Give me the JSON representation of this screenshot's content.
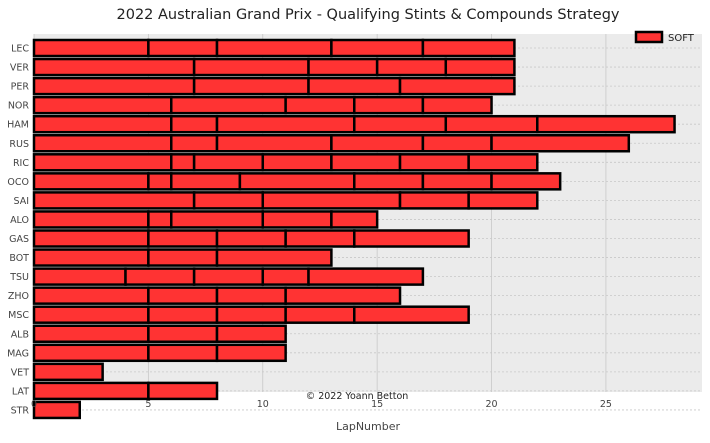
{
  "chart_data": {
    "type": "bar",
    "orientation": "horizontal-stacked",
    "title": "2022 Australian Grand Prix - Qualifying Stints & Compounds Strategy",
    "xlabel": "LapNumber",
    "ylabel": "",
    "xlim": [
      0,
      29.2
    ],
    "xticks": [
      0,
      5,
      10,
      15,
      20,
      25
    ],
    "grid": true,
    "legend": {
      "position": "top-right",
      "entries": [
        {
          "label": "SOFT",
          "color": "#ff3333"
        }
      ]
    },
    "annotation": "© 2022 Yoann Betton",
    "colors": {
      "SOFT": "#ff3333",
      "edge": "#000000",
      "background": "#ebebeb",
      "grid": "#c8c8c8"
    },
    "drivers": [
      {
        "driver": "LEC",
        "stints": [
          {
            "compound": "SOFT",
            "laps": 5
          },
          {
            "compound": "SOFT",
            "laps": 3
          },
          {
            "compound": "SOFT",
            "laps": 5
          },
          {
            "compound": "SOFT",
            "laps": 4
          },
          {
            "compound": "SOFT",
            "laps": 4
          }
        ]
      },
      {
        "driver": "VER",
        "stints": [
          {
            "compound": "SOFT",
            "laps": 7
          },
          {
            "compound": "SOFT",
            "laps": 5
          },
          {
            "compound": "SOFT",
            "laps": 3
          },
          {
            "compound": "SOFT",
            "laps": 3
          },
          {
            "compound": "SOFT",
            "laps": 3
          }
        ]
      },
      {
        "driver": "PER",
        "stints": [
          {
            "compound": "SOFT",
            "laps": 7
          },
          {
            "compound": "SOFT",
            "laps": 5
          },
          {
            "compound": "SOFT",
            "laps": 4
          },
          {
            "compound": "SOFT",
            "laps": 5
          }
        ]
      },
      {
        "driver": "NOR",
        "stints": [
          {
            "compound": "SOFT",
            "laps": 6
          },
          {
            "compound": "SOFT",
            "laps": 5
          },
          {
            "compound": "SOFT",
            "laps": 3
          },
          {
            "compound": "SOFT",
            "laps": 3
          },
          {
            "compound": "SOFT",
            "laps": 3
          }
        ]
      },
      {
        "driver": "HAM",
        "stints": [
          {
            "compound": "SOFT",
            "laps": 6
          },
          {
            "compound": "SOFT",
            "laps": 2
          },
          {
            "compound": "SOFT",
            "laps": 6
          },
          {
            "compound": "SOFT",
            "laps": 4
          },
          {
            "compound": "SOFT",
            "laps": 4
          },
          {
            "compound": "SOFT",
            "laps": 6
          }
        ]
      },
      {
        "driver": "RUS",
        "stints": [
          {
            "compound": "SOFT",
            "laps": 6
          },
          {
            "compound": "SOFT",
            "laps": 2
          },
          {
            "compound": "SOFT",
            "laps": 5
          },
          {
            "compound": "SOFT",
            "laps": 4
          },
          {
            "compound": "SOFT",
            "laps": 3
          },
          {
            "compound": "SOFT",
            "laps": 6
          }
        ]
      },
      {
        "driver": "RIC",
        "stints": [
          {
            "compound": "SOFT",
            "laps": 6
          },
          {
            "compound": "SOFT",
            "laps": 1
          },
          {
            "compound": "SOFT",
            "laps": 3
          },
          {
            "compound": "SOFT",
            "laps": 3
          },
          {
            "compound": "SOFT",
            "laps": 3
          },
          {
            "compound": "SOFT",
            "laps": 3
          },
          {
            "compound": "SOFT",
            "laps": 3
          }
        ]
      },
      {
        "driver": "OCO",
        "stints": [
          {
            "compound": "SOFT",
            "laps": 5
          },
          {
            "compound": "SOFT",
            "laps": 1
          },
          {
            "compound": "SOFT",
            "laps": 3
          },
          {
            "compound": "SOFT",
            "laps": 5
          },
          {
            "compound": "SOFT",
            "laps": 3
          },
          {
            "compound": "SOFT",
            "laps": 3
          },
          {
            "compound": "SOFT",
            "laps": 3
          }
        ]
      },
      {
        "driver": "SAI",
        "stints": [
          {
            "compound": "SOFT",
            "laps": 7
          },
          {
            "compound": "SOFT",
            "laps": 3
          },
          {
            "compound": "SOFT",
            "laps": 6
          },
          {
            "compound": "SOFT",
            "laps": 3
          },
          {
            "compound": "SOFT",
            "laps": 3
          }
        ]
      },
      {
        "driver": "ALO",
        "stints": [
          {
            "compound": "SOFT",
            "laps": 5
          },
          {
            "compound": "SOFT",
            "laps": 1
          },
          {
            "compound": "SOFT",
            "laps": 4
          },
          {
            "compound": "SOFT",
            "laps": 3
          },
          {
            "compound": "SOFT",
            "laps": 2
          }
        ]
      },
      {
        "driver": "GAS",
        "stints": [
          {
            "compound": "SOFT",
            "laps": 5
          },
          {
            "compound": "SOFT",
            "laps": 3
          },
          {
            "compound": "SOFT",
            "laps": 3
          },
          {
            "compound": "SOFT",
            "laps": 3
          },
          {
            "compound": "SOFT",
            "laps": 5
          }
        ]
      },
      {
        "driver": "BOT",
        "stints": [
          {
            "compound": "SOFT",
            "laps": 5
          },
          {
            "compound": "SOFT",
            "laps": 3
          },
          {
            "compound": "SOFT",
            "laps": 5
          }
        ]
      },
      {
        "driver": "TSU",
        "stints": [
          {
            "compound": "SOFT",
            "laps": 4
          },
          {
            "compound": "SOFT",
            "laps": 3
          },
          {
            "compound": "SOFT",
            "laps": 3
          },
          {
            "compound": "SOFT",
            "laps": 2
          },
          {
            "compound": "SOFT",
            "laps": 5
          }
        ]
      },
      {
        "driver": "ZHO",
        "stints": [
          {
            "compound": "SOFT",
            "laps": 5
          },
          {
            "compound": "SOFT",
            "laps": 3
          },
          {
            "compound": "SOFT",
            "laps": 3
          },
          {
            "compound": "SOFT",
            "laps": 5
          }
        ]
      },
      {
        "driver": "MSC",
        "stints": [
          {
            "compound": "SOFT",
            "laps": 5
          },
          {
            "compound": "SOFT",
            "laps": 3
          },
          {
            "compound": "SOFT",
            "laps": 3
          },
          {
            "compound": "SOFT",
            "laps": 3
          },
          {
            "compound": "SOFT",
            "laps": 5
          }
        ]
      },
      {
        "driver": "ALB",
        "stints": [
          {
            "compound": "SOFT",
            "laps": 5
          },
          {
            "compound": "SOFT",
            "laps": 3
          },
          {
            "compound": "SOFT",
            "laps": 3
          }
        ]
      },
      {
        "driver": "MAG",
        "stints": [
          {
            "compound": "SOFT",
            "laps": 5
          },
          {
            "compound": "SOFT",
            "laps": 3
          },
          {
            "compound": "SOFT",
            "laps": 3
          }
        ]
      },
      {
        "driver": "VET",
        "stints": [
          {
            "compound": "SOFT",
            "laps": 3
          }
        ]
      },
      {
        "driver": "LAT",
        "stints": [
          {
            "compound": "SOFT",
            "laps": 5
          },
          {
            "compound": "SOFT",
            "laps": 3
          }
        ]
      },
      {
        "driver": "STR",
        "stints": [
          {
            "compound": "SOFT",
            "laps": 2
          }
        ]
      }
    ]
  }
}
